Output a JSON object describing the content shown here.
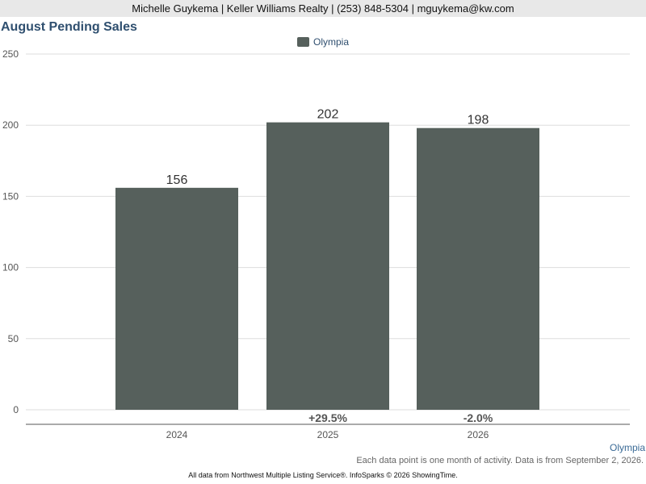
{
  "header": {
    "contact": "Michelle Guykema | Keller Williams Realty | (253) 848-5304 | mguykema@kw.com"
  },
  "footer": {
    "area": "Olympia",
    "note": "Each data point is one month of activity. Data is from September 2, 2026.",
    "source": "All data from Northwest Multiple Listing Service®. InfoSparks © 2026 ShowingTime."
  },
  "colors": {
    "bar": "#56605c",
    "grid": "#dddddd",
    "axis": "#555555",
    "tick_text": "#555555",
    "title": "#2f4f6f"
  },
  "chart_data": {
    "type": "bar",
    "title": "August Pending Sales",
    "categories": [
      "2024",
      "2025",
      "2026"
    ],
    "series": [
      {
        "name": "Olympia",
        "values": [
          156,
          202,
          198
        ]
      }
    ],
    "data_labels": [
      "156",
      "202",
      "198"
    ],
    "change_labels": [
      "",
      "+29.5%",
      "-2.0%"
    ],
    "yticks": [
      0,
      50,
      100,
      150,
      200,
      250
    ],
    "ylim": [
      0,
      250
    ],
    "xlabel": "",
    "ylabel": "",
    "grid": true,
    "legend_position": "top-center"
  }
}
